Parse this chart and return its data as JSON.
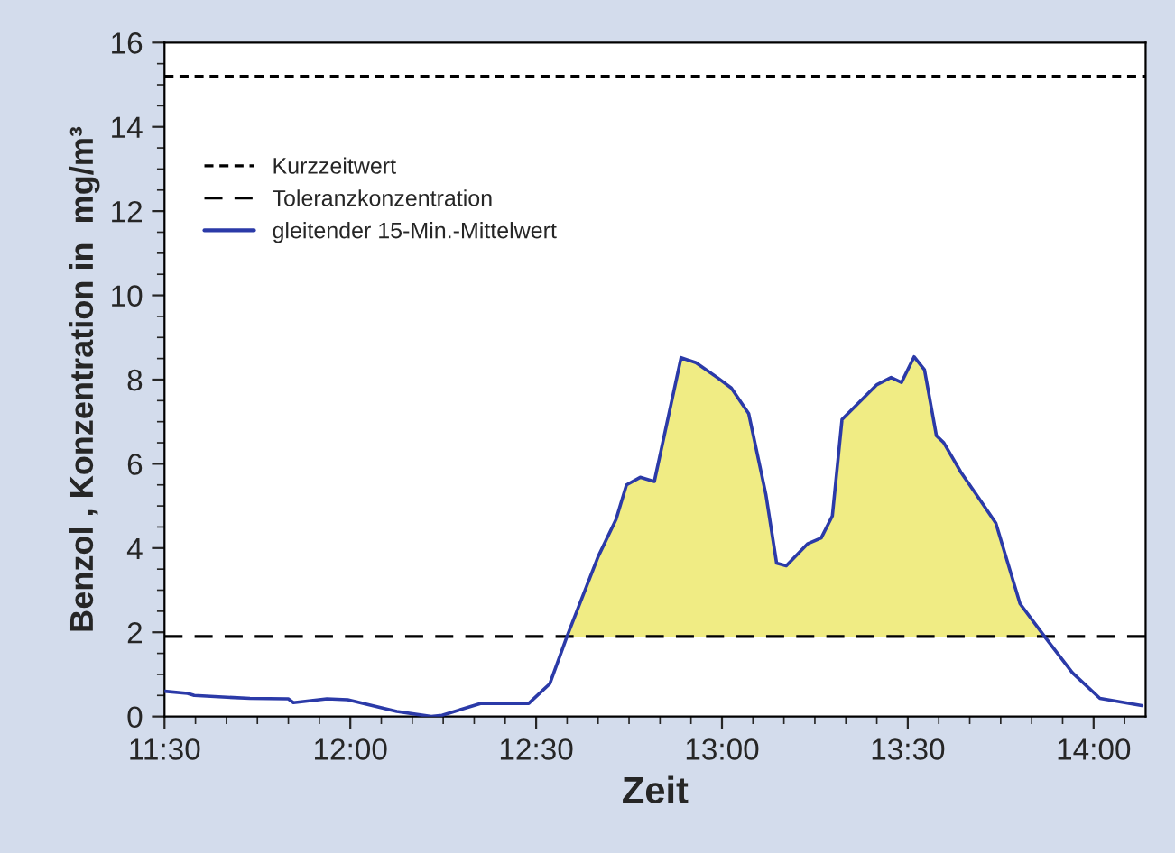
{
  "chart_data": {
    "type": "line",
    "xlabel": "Zeit",
    "ylabel": "Benzol , Konzentration in  mg/m³",
    "xlim": [
      11.5,
      14.14
    ],
    "ylim": [
      0,
      16
    ],
    "xticks": [
      {
        "value": 11.5,
        "label": "11:30"
      },
      {
        "value": 12.0,
        "label": "12:00"
      },
      {
        "value": 12.5,
        "label": "12:30"
      },
      {
        "value": 13.0,
        "label": "13:00"
      },
      {
        "value": 13.5,
        "label": "13:30"
      },
      {
        "value": 14.0,
        "label": "14:00"
      }
    ],
    "yticks": [
      0,
      2,
      4,
      6,
      8,
      10,
      12,
      14,
      16
    ],
    "grid": false,
    "legend": "top left",
    "ref_lines": [
      {
        "axis": "y",
        "value": 15.2,
        "label": "Kurzzeitwert",
        "color": "#000000",
        "line_style": "dotted"
      },
      {
        "axis": "y",
        "value": 1.9,
        "label": "Toleranzkonzentration",
        "color": "#000000",
        "line_style": "dashed"
      }
    ],
    "series": [
      {
        "name": "gleitender 15-Min.-Mittelwert",
        "color": "#2b3aa8",
        "x": [
          11.5,
          11.562,
          11.58,
          11.73,
          11.833,
          11.847,
          11.937,
          11.993,
          12.125,
          12.218,
          12.247,
          12.35,
          12.48,
          12.537,
          12.583,
          12.667,
          12.715,
          12.743,
          12.78,
          12.818,
          12.89,
          12.93,
          12.987,
          13.025,
          13.072,
          13.118,
          13.147,
          13.173,
          13.23,
          13.267,
          13.297,
          13.323,
          13.417,
          13.455,
          13.483,
          13.517,
          13.545,
          13.577,
          13.597,
          13.643,
          13.69,
          13.737,
          13.802,
          13.868,
          13.943,
          14.017,
          14.13
        ],
        "values": [
          0.6,
          0.55,
          0.5,
          0.43,
          0.42,
          0.33,
          0.42,
          0.4,
          0.12,
          0.0,
          0.03,
          0.31,
          0.31,
          0.78,
          1.9,
          3.8,
          4.68,
          5.5,
          5.68,
          5.58,
          8.52,
          8.4,
          8.05,
          7.8,
          7.19,
          5.28,
          3.64,
          3.58,
          4.1,
          4.24,
          4.76,
          7.05,
          7.88,
          8.05,
          7.93,
          8.54,
          8.23,
          6.67,
          6.5,
          5.8,
          5.2,
          4.59,
          2.68,
          1.9,
          1.04,
          0.43,
          0.26
        ]
      },
      {
        "type": "area",
        "color": "#f0ec84",
        "x": [
          12.583,
          12.667,
          12.715,
          12.743,
          12.78,
          12.818,
          12.89,
          12.93,
          12.987,
          13.025,
          13.072,
          13.118,
          13.147,
          13.173,
          13.23,
          13.267,
          13.297,
          13.323,
          13.417,
          13.455,
          13.483,
          13.517,
          13.545,
          13.577,
          13.597,
          13.643,
          13.69,
          13.737,
          13.802,
          13.868
        ],
        "values": [
          1.9,
          3.8,
          4.68,
          5.5,
          5.68,
          5.58,
          8.52,
          8.4,
          8.05,
          7.8,
          7.19,
          5.28,
          3.64,
          3.58,
          4.1,
          4.24,
          4.76,
          7.05,
          7.88,
          8.05,
          7.93,
          8.54,
          8.23,
          6.67,
          6.5,
          5.8,
          5.2,
          4.59,
          2.68,
          1.9
        ]
      }
    ]
  }
}
